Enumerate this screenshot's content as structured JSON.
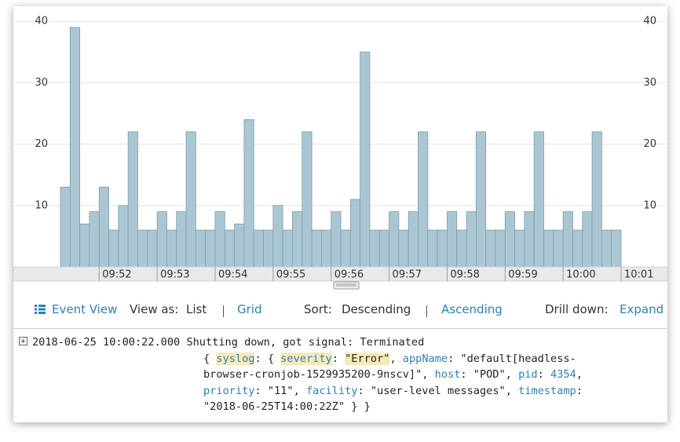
{
  "chart_data": {
    "type": "bar",
    "categories": [
      null,
      null,
      null,
      null,
      null,
      null,
      null,
      null,
      null,
      null,
      null,
      null,
      null,
      null,
      null,
      null,
      null,
      null,
      null,
      null,
      null,
      null,
      null,
      null,
      null,
      null,
      null,
      null,
      null,
      null,
      null,
      null,
      null,
      null,
      null,
      null,
      null,
      null,
      null,
      null,
      null,
      null,
      null,
      null,
      null,
      null,
      null,
      null,
      null,
      null,
      null,
      null,
      null,
      null,
      null,
      null,
      null,
      null
    ],
    "values": [
      13,
      39,
      7,
      9,
      13,
      6,
      10,
      22,
      6,
      6,
      9,
      6,
      9,
      22,
      6,
      6,
      9,
      6,
      7,
      24,
      6,
      6,
      10,
      6,
      9,
      22,
      6,
      6,
      9,
      6,
      11,
      35,
      6,
      6,
      9,
      6,
      9,
      22,
      6,
      6,
      9,
      6,
      9,
      22,
      6,
      6,
      9,
      6,
      9,
      22,
      6,
      6,
      9,
      6,
      9,
      22,
      6,
      6
    ],
    "color": "#abc6d3",
    "ylim": [
      0,
      40
    ],
    "yticks": [
      10,
      20,
      30,
      40
    ],
    "y2lim": [
      0,
      40
    ],
    "y2ticks": [
      10,
      20,
      30,
      40
    ],
    "xticks": [
      "09:52",
      "09:53",
      "09:54",
      "09:55",
      "09:56",
      "09:57",
      "09:58",
      "09:59",
      "10:00",
      "10:01"
    ],
    "grid": true
  },
  "toolbar": {
    "event_view": "Event View",
    "view_as": "View as:",
    "list": "List",
    "grid": "Grid",
    "sort": "Sort:",
    "descending": "Descending",
    "ascending": "Ascending",
    "drill_down": "Drill down:",
    "expand": "Expand"
  },
  "log": {
    "timestamp": "2018-06-25 10:00:22.000",
    "message": "Shutting down, got signal: Terminated",
    "lines": [
      [
        "{ ",
        "syslog",
        ": { ",
        "severity",
        ": ",
        "\"Error\"",
        ", ",
        "appName",
        ": \"default[headless-"
      ],
      [
        "browser-cronjob-1529935200-9nscv]\", ",
        "host",
        ": \"POD\", ",
        "pid",
        ": ",
        "4354",
        ","
      ],
      [
        "priority",
        ": \"11\", ",
        "facility",
        ": \"user-level messages\", ",
        "timestamp",
        ":"
      ],
      [
        "\"2018-06-25T14:00:22Z\" } }"
      ]
    ]
  }
}
